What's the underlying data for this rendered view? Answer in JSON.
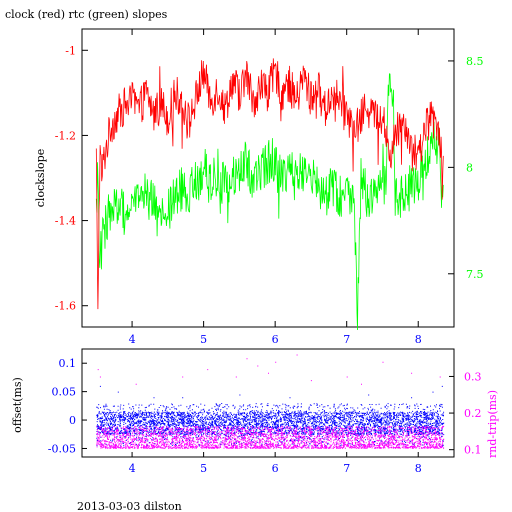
{
  "chart_data": [
    {
      "type": "line",
      "title": "clock (red) rtc (green) slopes",
      "ylabel": "clockslope",
      "xlim": [
        3.3,
        8.5
      ],
      "ylim": [
        -1.65,
        -0.95
      ],
      "y2lim": [
        7.25,
        8.65
      ],
      "xticks": [
        4,
        5,
        6,
        7,
        8
      ],
      "yticks": [
        -1.6,
        -1.4,
        -1.2,
        -1
      ],
      "ytick_labels": [
        "-1.6",
        "-1.4",
        "-1.2",
        "-1"
      ],
      "y2ticks": [
        7.5,
        8,
        8.5
      ],
      "y2tick_labels": [
        "7.5",
        "8",
        "8.5"
      ],
      "colors": {
        "frame": "#000000",
        "clock": "#ff0000",
        "rtc": "#00ff00",
        "x_tick_labels": "#0000ff"
      },
      "series": [
        {
          "axis": "left",
          "color": "#ff0000",
          "x": [
            3.5,
            3.52,
            3.55,
            3.58,
            3.6,
            3.65,
            3.7,
            3.8,
            3.9,
            4.0,
            4.1,
            4.2,
            4.3,
            4.4,
            4.5,
            4.6,
            4.7,
            4.8,
            4.9,
            5.0,
            5.1,
            5.2,
            5.3,
            5.4,
            5.5,
            5.6,
            5.7,
            5.8,
            5.9,
            6.0,
            6.1,
            6.2,
            6.3,
            6.4,
            6.5,
            6.6,
            6.7,
            6.8,
            6.9,
            7.0,
            7.1,
            7.2,
            7.3,
            7.4,
            7.5,
            7.6,
            7.7,
            7.8,
            7.9,
            8.0,
            8.1,
            8.2,
            8.3,
            8.35
          ],
          "values": [
            -1.25,
            -1.62,
            -1.24,
            -1.3,
            -1.26,
            -1.22,
            -1.18,
            -1.15,
            -1.13,
            -1.12,
            -1.14,
            -1.1,
            -1.15,
            -1.12,
            -1.16,
            -1.1,
            -1.12,
            -1.17,
            -1.11,
            -1.05,
            -1.12,
            -1.09,
            -1.14,
            -1.07,
            -1.1,
            -1.06,
            -1.12,
            -1.08,
            -1.1,
            -1.05,
            -1.1,
            -1.08,
            -1.12,
            -1.06,
            -1.11,
            -1.09,
            -1.14,
            -1.1,
            -1.12,
            -1.14,
            -1.2,
            -1.16,
            -1.12,
            -1.16,
            -1.15,
            -1.25,
            -1.19,
            -1.16,
            -1.22,
            -1.26,
            -1.18,
            -1.15,
            -1.19,
            -1.28
          ]
        },
        {
          "axis": "right",
          "color": "#00ff00",
          "x": [
            3.5,
            3.52,
            3.55,
            3.6,
            3.65,
            3.7,
            3.8,
            3.9,
            4.0,
            4.1,
            4.2,
            4.3,
            4.4,
            4.5,
            4.6,
            4.7,
            4.8,
            4.9,
            5.0,
            5.1,
            5.2,
            5.3,
            5.4,
            5.5,
            5.6,
            5.7,
            5.8,
            5.9,
            6.0,
            6.1,
            6.2,
            6.3,
            6.4,
            6.5,
            6.6,
            6.7,
            6.8,
            6.9,
            7.0,
            7.1,
            7.15,
            7.2,
            7.3,
            7.4,
            7.5,
            7.55,
            7.6,
            7.7,
            7.8,
            7.9,
            8.0,
            8.1,
            8.2,
            8.3,
            8.35
          ],
          "values": [
            7.85,
            7.95,
            7.55,
            7.7,
            7.75,
            7.8,
            7.82,
            7.78,
            7.8,
            7.85,
            7.88,
            7.82,
            7.75,
            7.8,
            7.85,
            7.9,
            7.88,
            7.93,
            8.0,
            7.92,
            7.98,
            7.9,
            7.95,
            7.97,
            8.02,
            7.95,
            7.98,
            8.02,
            8.05,
            7.92,
            7.98,
            7.94,
            8.0,
            7.95,
            7.9,
            7.88,
            7.92,
            7.86,
            7.88,
            7.9,
            7.28,
            7.95,
            7.85,
            7.88,
            7.92,
            7.9,
            8.55,
            7.82,
            7.88,
            7.9,
            7.95,
            8.0,
            8.15,
            8.05,
            7.7
          ]
        }
      ]
    },
    {
      "type": "scatter",
      "ylabel": "offset(ms)",
      "y2label": "rnd-trip(ms)",
      "xlim": [
        3.3,
        8.5
      ],
      "ylim": [
        -0.065,
        0.125
      ],
      "y2lim": [
        0.08,
        0.375
      ],
      "xticks": [
        4,
        5,
        6,
        7,
        8
      ],
      "yticks": [
        -0.05,
        0,
        0.05,
        0.1
      ],
      "ytick_labels": [
        "-0.05",
        "0",
        "0.05",
        "0.1"
      ],
      "y2ticks": [
        0.1,
        0.2,
        0.3
      ],
      "y2tick_labels": [
        "0.1",
        "0.2",
        "0.3"
      ],
      "colors": {
        "frame": "#000000",
        "offset": "#0000ff",
        "roundtrip": "#ff00ff",
        "left_axis": "#0000ff",
        "right_axis": "#ff00ff"
      },
      "series": [
        {
          "axis": "left",
          "color": "#0000ff",
          "x_range": [
            3.5,
            8.35
          ],
          "band": [
            -0.045,
            0.03
          ],
          "core": [
            -0.025,
            0.015
          ],
          "outliers": [
            [
              3.55,
              0.06
            ],
            [
              3.8,
              0.05
            ],
            [
              4.3,
              0.04
            ],
            [
              4.7,
              0.04
            ],
            [
              5.5,
              0.045
            ],
            [
              6.2,
              0.04
            ],
            [
              7.3,
              0.045
            ],
            [
              7.9,
              0.04
            ],
            [
              8.2,
              0.05
            ],
            [
              8.33,
              0.06
            ]
          ]
        },
        {
          "axis": "right",
          "color": "#ff00ff",
          "x_range": [
            3.5,
            8.35
          ],
          "band": [
            0.105,
            0.165
          ],
          "outliers": [
            [
              3.52,
              0.32
            ],
            [
              3.55,
              0.3
            ],
            [
              4.05,
              0.28
            ],
            [
              4.7,
              0.3
            ],
            [
              5.05,
              0.32
            ],
            [
              5.45,
              0.3
            ],
            [
              5.6,
              0.35
            ],
            [
              5.75,
              0.33
            ],
            [
              5.9,
              0.31
            ],
            [
              6.0,
              0.34
            ],
            [
              6.3,
              0.36
            ],
            [
              6.5,
              0.29
            ],
            [
              7.0,
              0.3
            ],
            [
              7.2,
              0.28
            ],
            [
              7.5,
              0.34
            ],
            [
              7.9,
              0.31
            ],
            [
              8.3,
              0.3
            ]
          ]
        }
      ]
    }
  ],
  "footer": "2013-03-03 dilston"
}
